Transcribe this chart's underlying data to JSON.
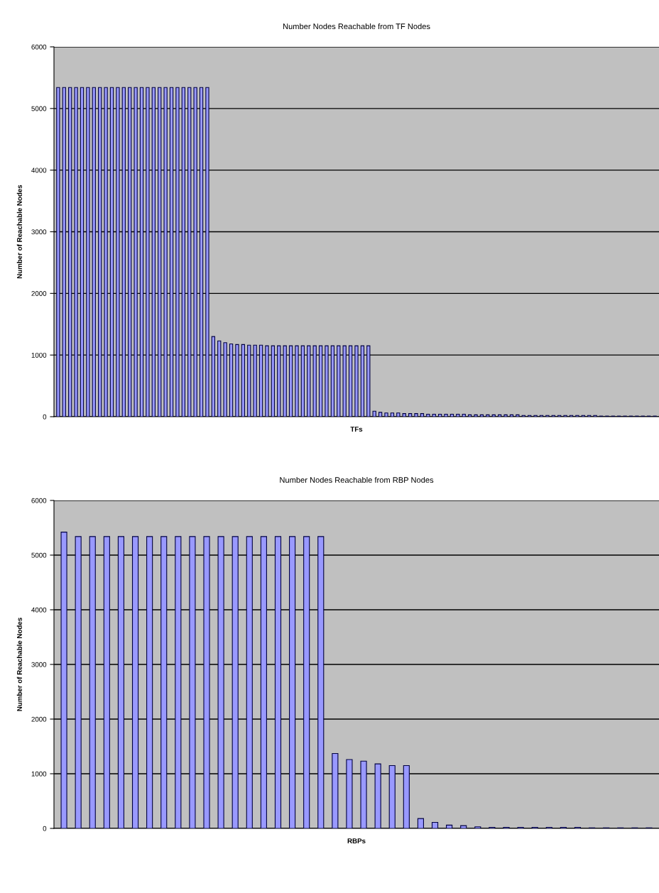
{
  "chart_data": [
    {
      "type": "bar",
      "title": "Number Nodes Reachable from TF Nodes",
      "xlabel": "TFs",
      "ylabel": "Number of Reachable Nodes",
      "categories": [
        null,
        null,
        null,
        null,
        null,
        null,
        null,
        null,
        null,
        null,
        null,
        null,
        null,
        null,
        null,
        null,
        null,
        null,
        null,
        null,
        null,
        null,
        null,
        null,
        null,
        null,
        null,
        null,
        null,
        null,
        null,
        null,
        null,
        null,
        null,
        null,
        null,
        null,
        null,
        null,
        null,
        null,
        null,
        null,
        null,
        null,
        null,
        null,
        null,
        null,
        null,
        null,
        null,
        null,
        null,
        null,
        null,
        null,
        null,
        null,
        null,
        null,
        null,
        null,
        null,
        null,
        null,
        null,
        null,
        null,
        null,
        null,
        null,
        null,
        null,
        null,
        null,
        null,
        null,
        null,
        null,
        null,
        null,
        null,
        null,
        null,
        null,
        null,
        null,
        null,
        null,
        null,
        null,
        null,
        null,
        null,
        null,
        null,
        null,
        null,
        null
      ],
      "values": [
        5340,
        5340,
        5340,
        5340,
        5340,
        5340,
        5340,
        5340,
        5340,
        5340,
        5340,
        5340,
        5340,
        5340,
        5340,
        5340,
        5340,
        5340,
        5340,
        5340,
        5340,
        5340,
        5340,
        5340,
        5340,
        5340,
        1300,
        1230,
        1200,
        1180,
        1170,
        1170,
        1160,
        1160,
        1160,
        1150,
        1150,
        1150,
        1150,
        1150,
        1150,
        1150,
        1150,
        1150,
        1150,
        1150,
        1150,
        1150,
        1150,
        1150,
        1150,
        1150,
        1150,
        90,
        70,
        60,
        60,
        60,
        50,
        50,
        50,
        50,
        40,
        40,
        40,
        40,
        40,
        40,
        40,
        30,
        30,
        30,
        30,
        30,
        30,
        30,
        30,
        30,
        20,
        20,
        20,
        20,
        20,
        20,
        20,
        20,
        20,
        20,
        20,
        20,
        20,
        10,
        10,
        10,
        10,
        10,
        10,
        10,
        10,
        10,
        10
      ],
      "color": "#9999ff",
      "ylim": [
        0,
        6000
      ],
      "yticks": [
        0,
        1000,
        2000,
        3000,
        4000,
        5000,
        6000
      ],
      "grid": "y",
      "tick_labels": "y"
    },
    {
      "type": "bar",
      "title": "Number Nodes Reachable from RBP Nodes",
      "xlabel": "RBPs",
      "ylabel": "Number of Reachable Nodes",
      "categories": [
        null,
        null,
        null,
        null,
        null,
        null,
        null,
        null,
        null,
        null,
        null,
        null,
        null,
        null,
        null,
        null,
        null,
        null,
        null,
        null,
        null,
        null,
        null,
        null,
        null,
        null,
        null,
        null,
        null,
        null,
        null,
        null,
        null,
        null,
        null,
        null,
        null,
        null,
        null,
        null,
        null,
        null
      ],
      "values": [
        5420,
        5340,
        5340,
        5340,
        5340,
        5340,
        5340,
        5340,
        5340,
        5340,
        5340,
        5340,
        5340,
        5340,
        5340,
        5340,
        5340,
        5340,
        5340,
        1370,
        1260,
        1230,
        1180,
        1150,
        1150,
        180,
        110,
        60,
        50,
        30,
        20,
        20,
        20,
        20,
        20,
        20,
        20,
        10,
        10,
        10,
        10,
        10
      ],
      "color": "#9999ff",
      "ylim": [
        0,
        6000
      ],
      "yticks": [
        0,
        1000,
        2000,
        3000,
        4000,
        5000,
        6000
      ],
      "grid": "y",
      "tick_labels": "y"
    }
  ]
}
